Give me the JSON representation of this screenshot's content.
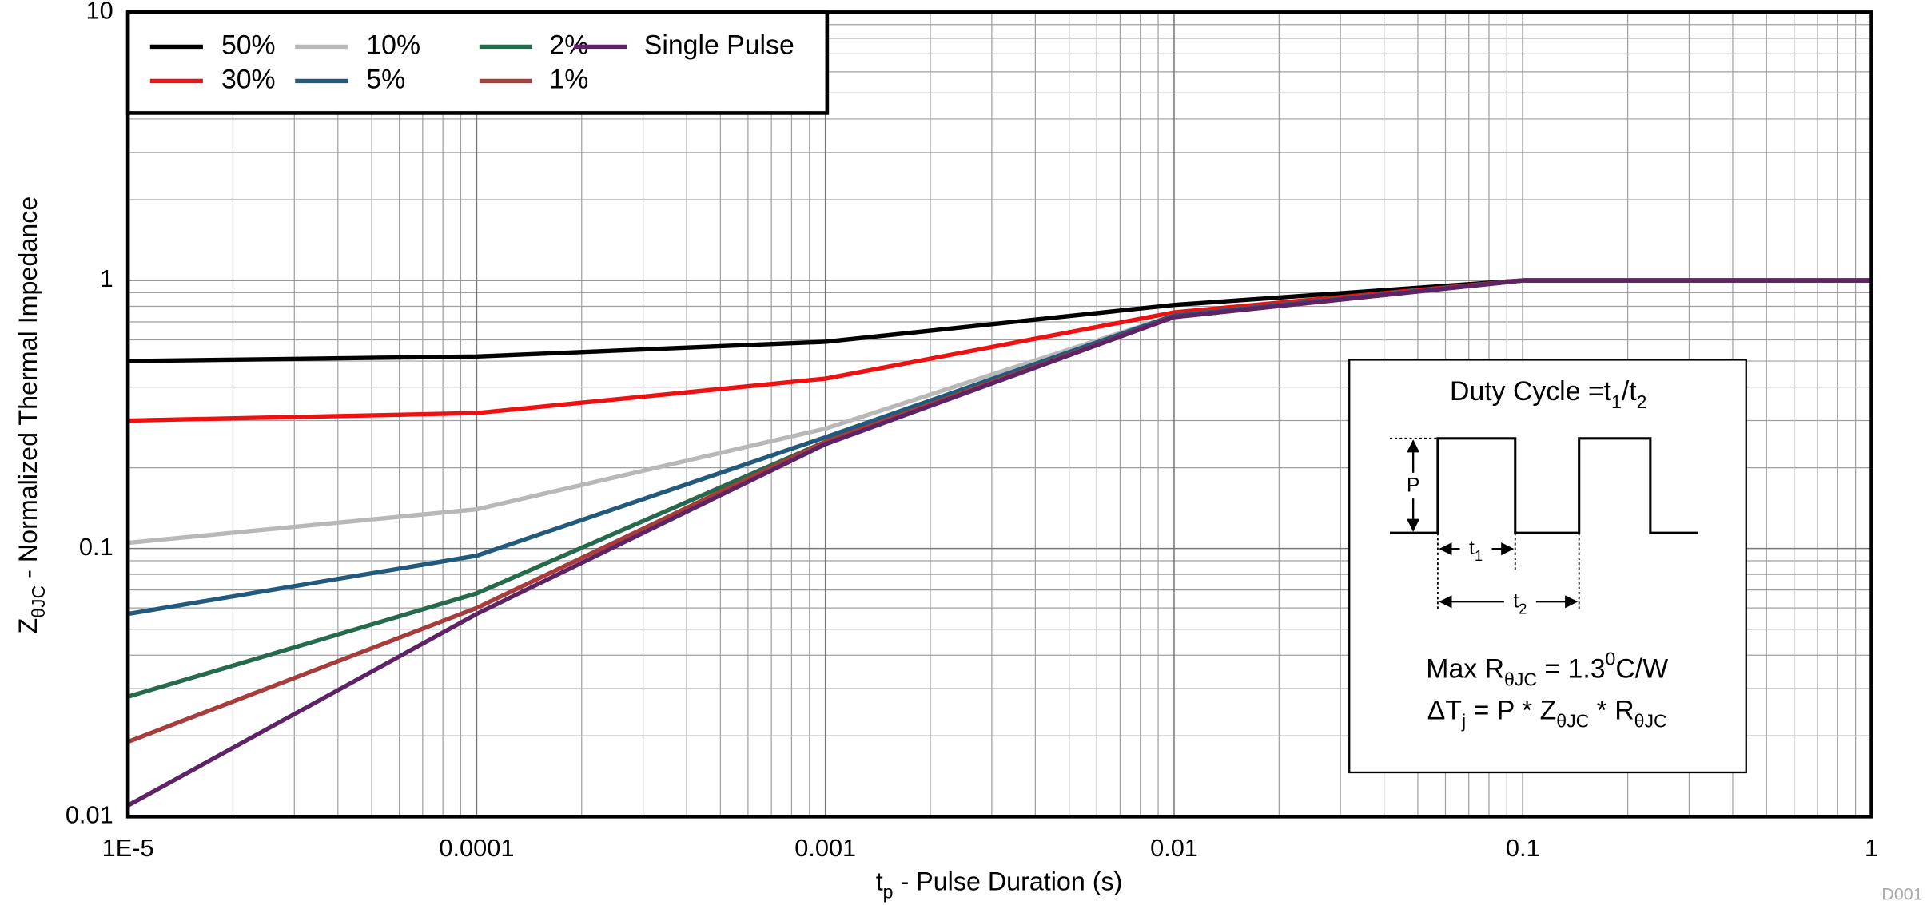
{
  "chart_data": {
    "type": "line",
    "x_label": [
      "t",
      "p",
      " - Pulse Duration (s)"
    ],
    "y_label": [
      "Z",
      "θJC",
      " - Normalized Thermal Impedance"
    ],
    "x": [
      1e-05,
      0.0001,
      0.001,
      0.01,
      0.1,
      1
    ],
    "log_x": true,
    "log_y": true,
    "grid": true,
    "xlim": [
      1e-05,
      1
    ],
    "xticks": [
      {
        "value": 1e-05,
        "label": "1E-5"
      },
      0.0001,
      0.001,
      0.01,
      0.1,
      1
    ],
    "ylim": [
      0.01,
      10
    ],
    "yticks": [
      0.01,
      0.1,
      1,
      10
    ],
    "legend": "top-left",
    "series": [
      {
        "name": "50%",
        "color": "#000000",
        "values": [
          0.5,
          0.52,
          0.59,
          0.81,
          1,
          1
        ]
      },
      {
        "name": "30%",
        "color": "#ee1111",
        "values": [
          0.3,
          0.32,
          0.43,
          0.76,
          1,
          1
        ]
      },
      {
        "name": "10%",
        "color": "#b8b8b8",
        "values": [
          0.105,
          0.14,
          0.28,
          0.74,
          1,
          1
        ]
      },
      {
        "name": "5%",
        "color": "#215a7c",
        "values": [
          0.057,
          0.094,
          0.26,
          0.74,
          1,
          1
        ]
      },
      {
        "name": "2%",
        "color": "#256b4b",
        "values": [
          0.028,
          0.068,
          0.25,
          0.73,
          1,
          1
        ]
      },
      {
        "name": "1%",
        "color": "#a63c3c",
        "values": [
          0.019,
          0.06,
          0.25,
          0.73,
          1,
          1
        ]
      },
      {
        "name": "Single Pulse",
        "color": "#5e2364",
        "values": [
          0.011,
          0.057,
          0.245,
          0.73,
          1,
          1
        ]
      }
    ],
    "inset": {
      "title": [
        "Duty Cycle =t",
        "1",
        "/t",
        "2"
      ],
      "pulse": "P",
      "t1": [
        "t",
        "1"
      ],
      "t2": [
        "t",
        "2"
      ],
      "max_r": [
        "Max R",
        "θJC",
        " = 1.3",
        "0",
        "C/W"
      ],
      "delta": [
        "ΔT",
        "j",
        " = P * Z",
        "θJC",
        " * R",
        "θJC"
      ]
    },
    "footer": "D001"
  }
}
